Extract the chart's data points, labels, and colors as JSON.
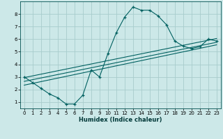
{
  "xlabel": "Humidex (Indice chaleur)",
  "bg_color": "#cce8e8",
  "grid_color": "#a8cccc",
  "line_color": "#006060",
  "xlim": [
    -0.5,
    23.5
  ],
  "ylim": [
    0.5,
    9.0
  ],
  "xticks": [
    0,
    1,
    2,
    3,
    4,
    5,
    6,
    7,
    8,
    9,
    10,
    11,
    12,
    13,
    14,
    15,
    16,
    17,
    18,
    19,
    20,
    21,
    22,
    23
  ],
  "yticks": [
    1,
    2,
    3,
    4,
    5,
    6,
    7,
    8
  ],
  "curve1_x": [
    0,
    1,
    2,
    3,
    4,
    5,
    6,
    7,
    8,
    9,
    10,
    11,
    12,
    13,
    14,
    15,
    16,
    17,
    18,
    19,
    20,
    21,
    22,
    23
  ],
  "curve1_y": [
    3.0,
    2.55,
    2.1,
    1.65,
    1.35,
    0.85,
    0.85,
    1.55,
    3.55,
    3.0,
    4.85,
    6.5,
    7.75,
    8.55,
    8.3,
    8.3,
    7.85,
    7.15,
    5.85,
    5.45,
    5.25,
    5.4,
    6.0,
    5.85
  ],
  "line2_x": [
    0,
    23
  ],
  "line2_y": [
    2.35,
    5.55
  ],
  "line3_x": [
    0,
    23
  ],
  "line3_y": [
    2.65,
    5.75
  ],
  "line4_x": [
    0,
    23
  ],
  "line4_y": [
    2.95,
    6.05
  ]
}
